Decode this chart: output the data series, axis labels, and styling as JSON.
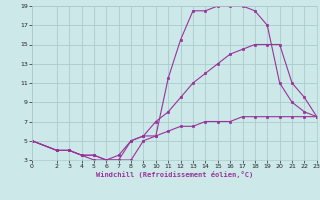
{
  "bg_color": "#cce8e8",
  "grid_color": "#aacccc",
  "line_color": "#993399",
  "marker_color": "#993399",
  "xlabel": "Windchill (Refroidissement éolien,°C)",
  "xlim": [
    0,
    23
  ],
  "ylim": [
    3,
    19
  ],
  "xticks": [
    0,
    2,
    3,
    4,
    5,
    6,
    7,
    8,
    9,
    10,
    11,
    12,
    13,
    14,
    15,
    16,
    17,
    18,
    19,
    20,
    21,
    22,
    23
  ],
  "yticks": [
    3,
    5,
    7,
    9,
    11,
    13,
    15,
    17,
    19
  ],
  "curve1_x": [
    0,
    2,
    3,
    4,
    5,
    6,
    7,
    8,
    9,
    10,
    11,
    12,
    13,
    14,
    15,
    16,
    17,
    18,
    19,
    20,
    21,
    22,
    23
  ],
  "curve1_y": [
    5,
    4,
    4,
    3.5,
    3,
    3,
    3,
    3,
    5,
    5.5,
    11.5,
    15.5,
    18.5,
    18.5,
    19,
    19,
    19,
    18.5,
    17,
    11,
    9,
    8,
    7.5
  ],
  "curve2_x": [
    0,
    2,
    3,
    4,
    5,
    6,
    7,
    8,
    9,
    10,
    11,
    12,
    13,
    14,
    15,
    16,
    17,
    18,
    19,
    20,
    21,
    22,
    23
  ],
  "curve2_y": [
    5,
    4,
    4,
    3.5,
    3.5,
    3,
    3,
    5,
    5.5,
    7,
    8,
    9.5,
    11,
    12,
    13,
    14,
    14.5,
    15,
    15,
    15,
    11,
    9.5,
    7.5
  ],
  "curve3_x": [
    0,
    2,
    3,
    4,
    5,
    6,
    7,
    8,
    9,
    10,
    11,
    12,
    13,
    14,
    15,
    16,
    17,
    18,
    19,
    20,
    21,
    22,
    23
  ],
  "curve3_y": [
    5,
    4,
    4,
    3.5,
    3.5,
    3,
    3.5,
    5,
    5.5,
    5.5,
    6,
    6.5,
    6.5,
    7,
    7,
    7,
    7.5,
    7.5,
    7.5,
    7.5,
    7.5,
    7.5,
    7.5
  ]
}
